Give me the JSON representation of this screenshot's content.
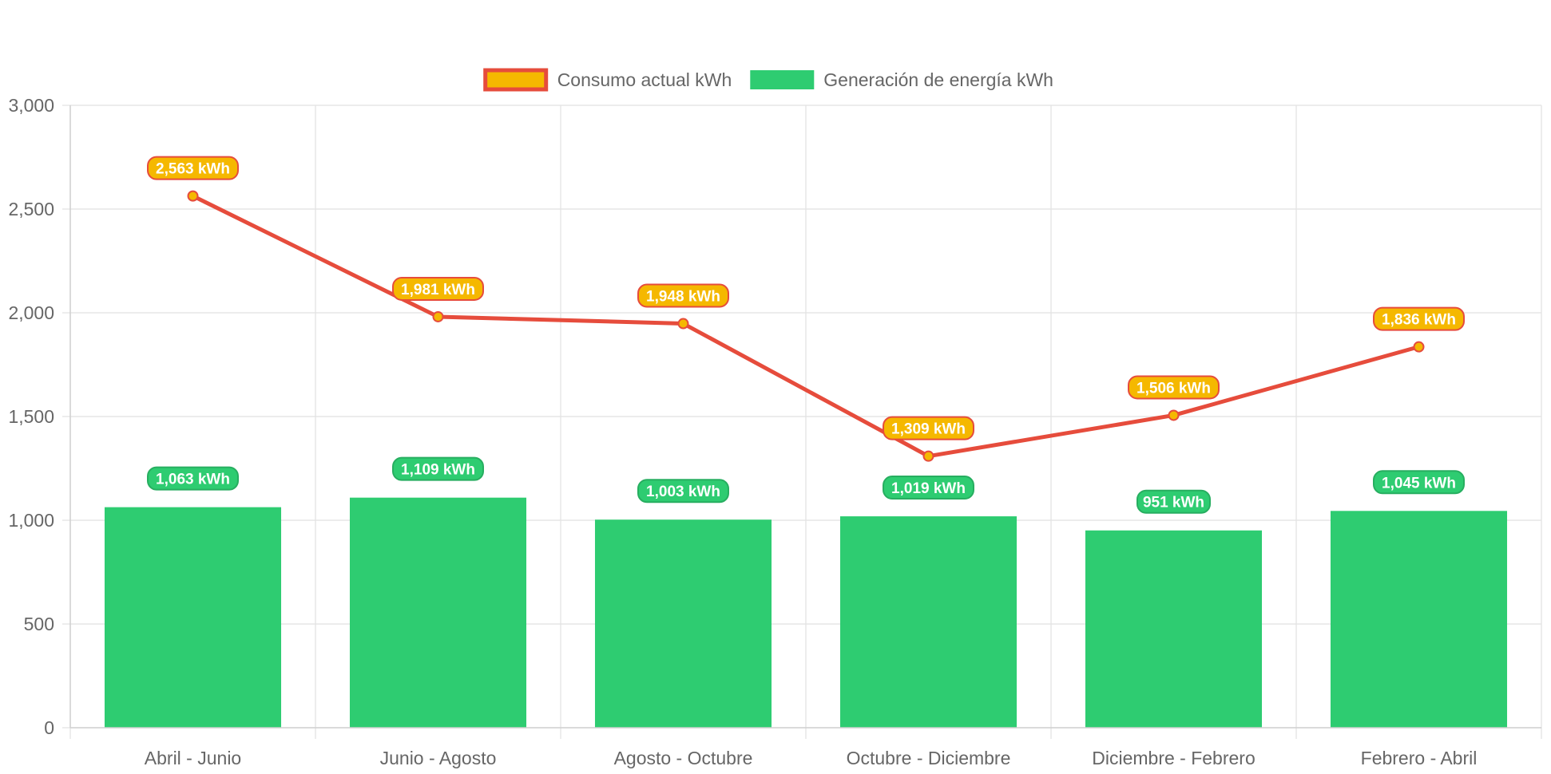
{
  "chart_data": {
    "type": "bar",
    "categories": [
      "Abril - Junio",
      "Junio - Agosto",
      "Agosto - Octubre",
      "Octubre - Diciembre",
      "Diciembre - Febrero",
      "Febrero - Abril"
    ],
    "series": [
      {
        "name": "Consumo actual kWh",
        "type": "line",
        "values": [
          2563,
          1981,
          1948,
          1309,
          1506,
          1836
        ],
        "labels": [
          "2,563 kWh",
          "1,981 kWh",
          "1,948 kWh",
          "1,309 kWh",
          "1,506 kWh",
          "1,836 kWh"
        ],
        "line_color": "#e64c3c",
        "fill_color": "#f5b800"
      },
      {
        "name": "Generación de energía kWh",
        "type": "bar",
        "values": [
          1063,
          1109,
          1003,
          1019,
          951,
          1045
        ],
        "labels": [
          "1,063 kWh",
          "1,109 kWh",
          "1,003 kWh",
          "1,019 kWh",
          "951 kWh",
          "1,045 kWh"
        ],
        "color": "#2ecc71",
        "border_color": "#27ae60"
      }
    ],
    "y_ticks": [
      "0",
      "500",
      "1,000",
      "1,500",
      "2,000",
      "2,500",
      "3,000"
    ],
    "ylim": [
      0,
      3000
    ],
    "y_step": 500,
    "grid": true,
    "legend_position": "top",
    "title": "",
    "xlabel": "",
    "ylabel": ""
  }
}
